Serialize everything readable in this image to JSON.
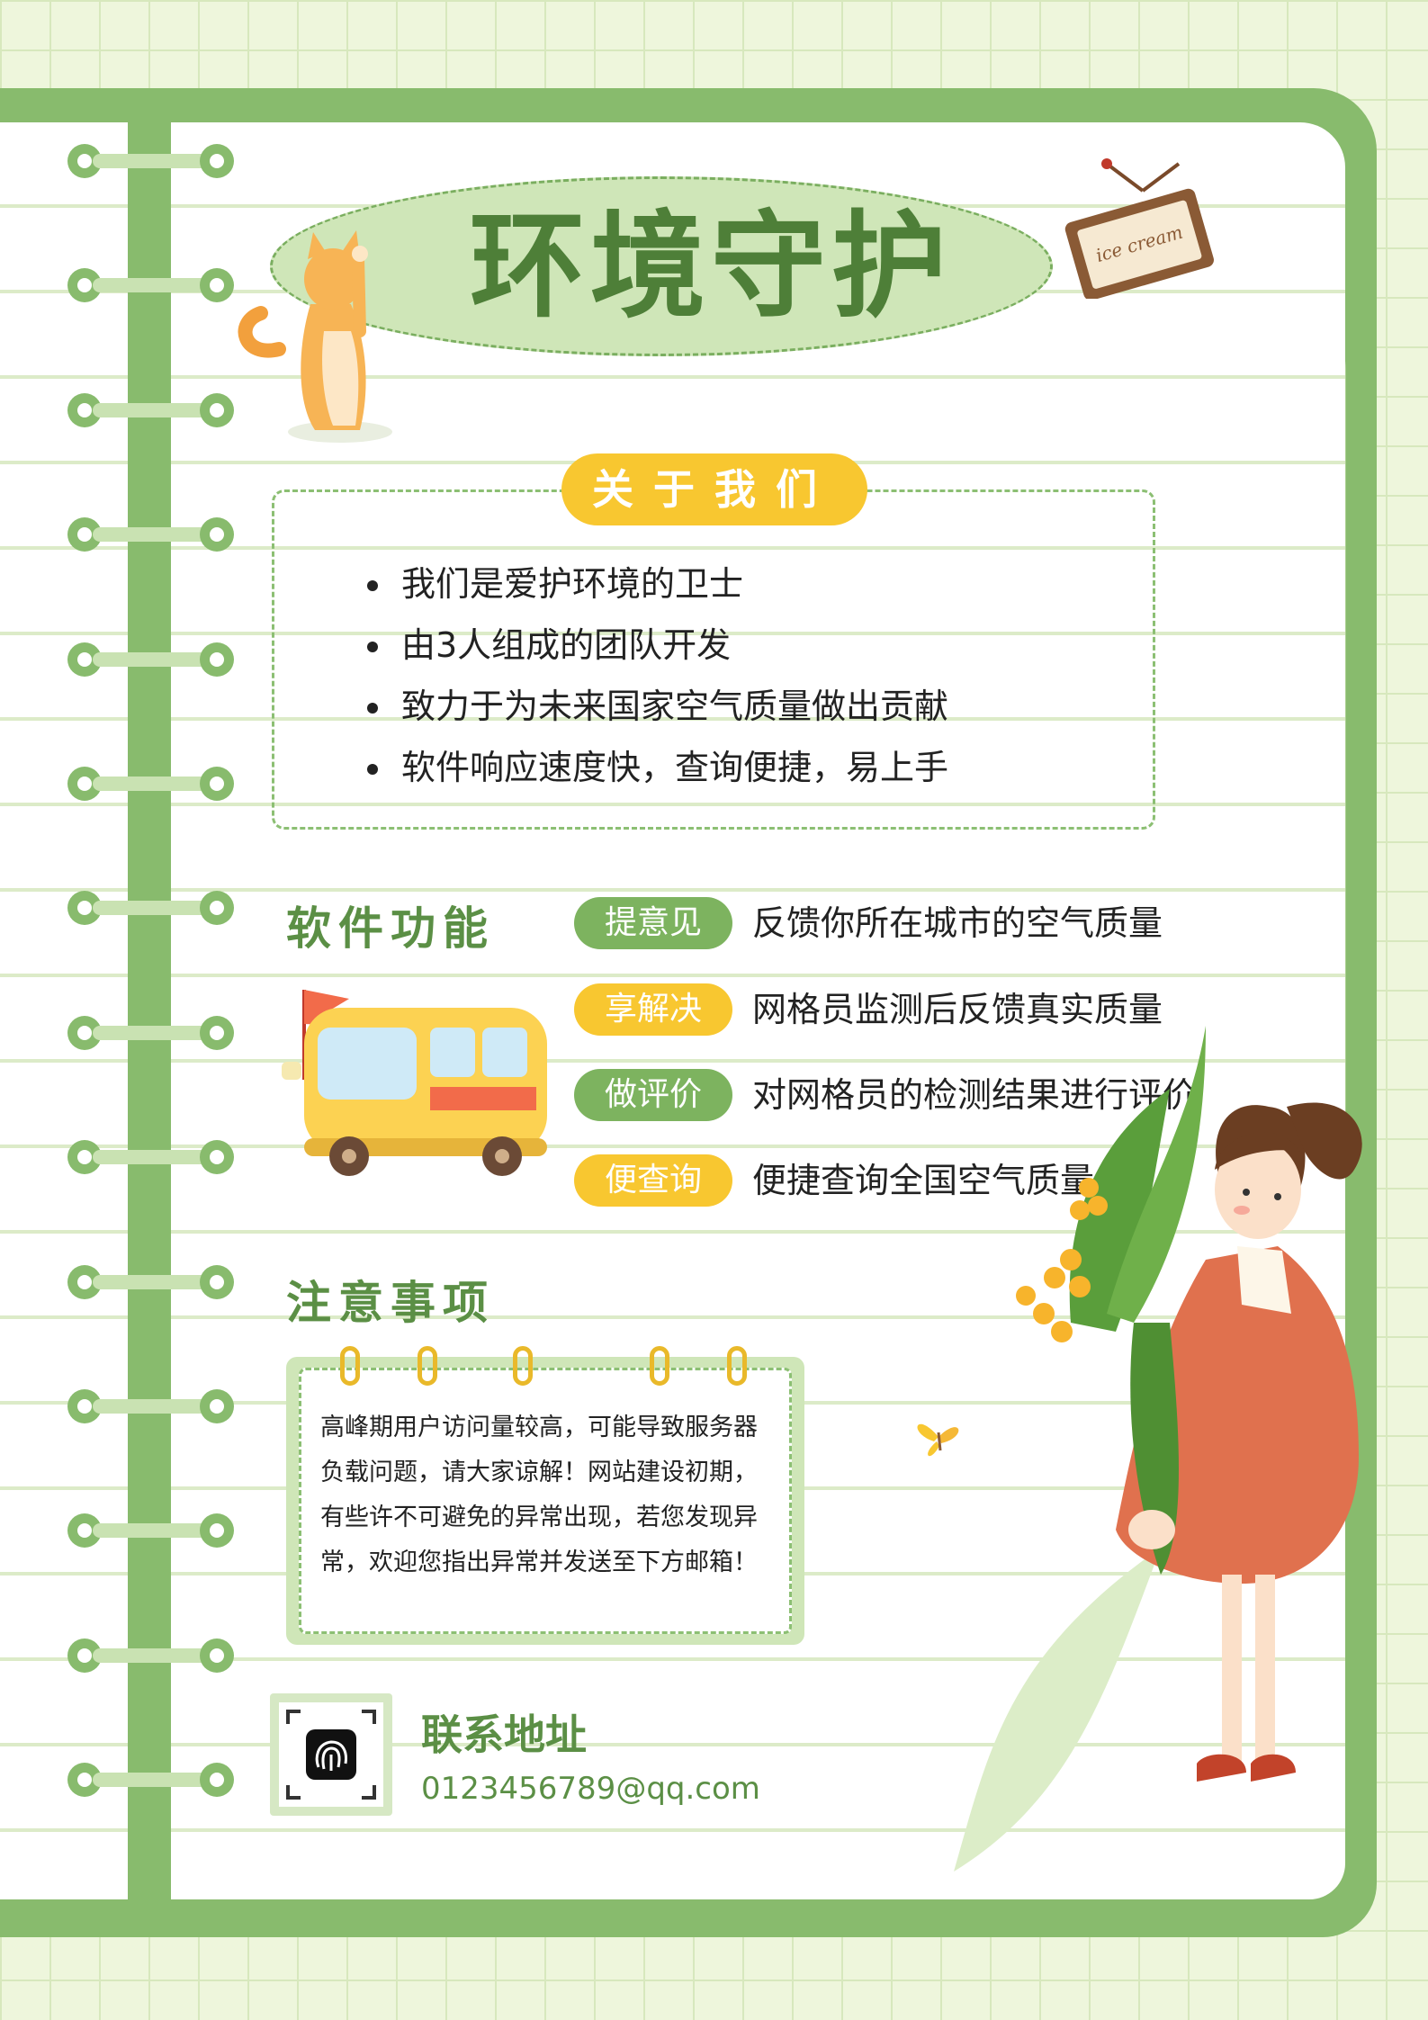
{
  "title": "环境守护",
  "about": {
    "badge": "关于我们",
    "items": [
      "我们是爱护环境的卫士",
      "由3人组成的团队开发",
      "致力于为未来国家空气质量做出贡献",
      "软件响应速度快，查询便捷，易上手"
    ]
  },
  "features": {
    "title": "软件功能",
    "items": [
      {
        "tag": "提意见",
        "desc": "反馈你所在城市的空气质量",
        "color": "#7db35f"
      },
      {
        "tag": "享解决",
        "desc": "网格员监测后反馈真实质量",
        "color": "#f8c730"
      },
      {
        "tag": "做评价",
        "desc": "对网格员的检测结果进行评价",
        "color": "#7db35f"
      },
      {
        "tag": "便查询",
        "desc": "便捷查询全国空气质量",
        "color": "#f8c730"
      }
    ]
  },
  "notes": {
    "title": "注意事项",
    "text": "高峰期用户访问量较高，可能导致服务器负载问题，请大家谅解！网站建设初期，有些许不可避免的异常出现，若您发现异常，欢迎您指出异常并发送至下方邮箱！"
  },
  "contact": {
    "title": "联系地址",
    "email": "0123456789@qq.com"
  },
  "decor": {
    "sign_text": "ice cream",
    "icons": [
      "cat-icon",
      "bus-icon",
      "girl-icon",
      "butterfly-icon",
      "fingerprint-icon",
      "sign-icon"
    ]
  }
}
